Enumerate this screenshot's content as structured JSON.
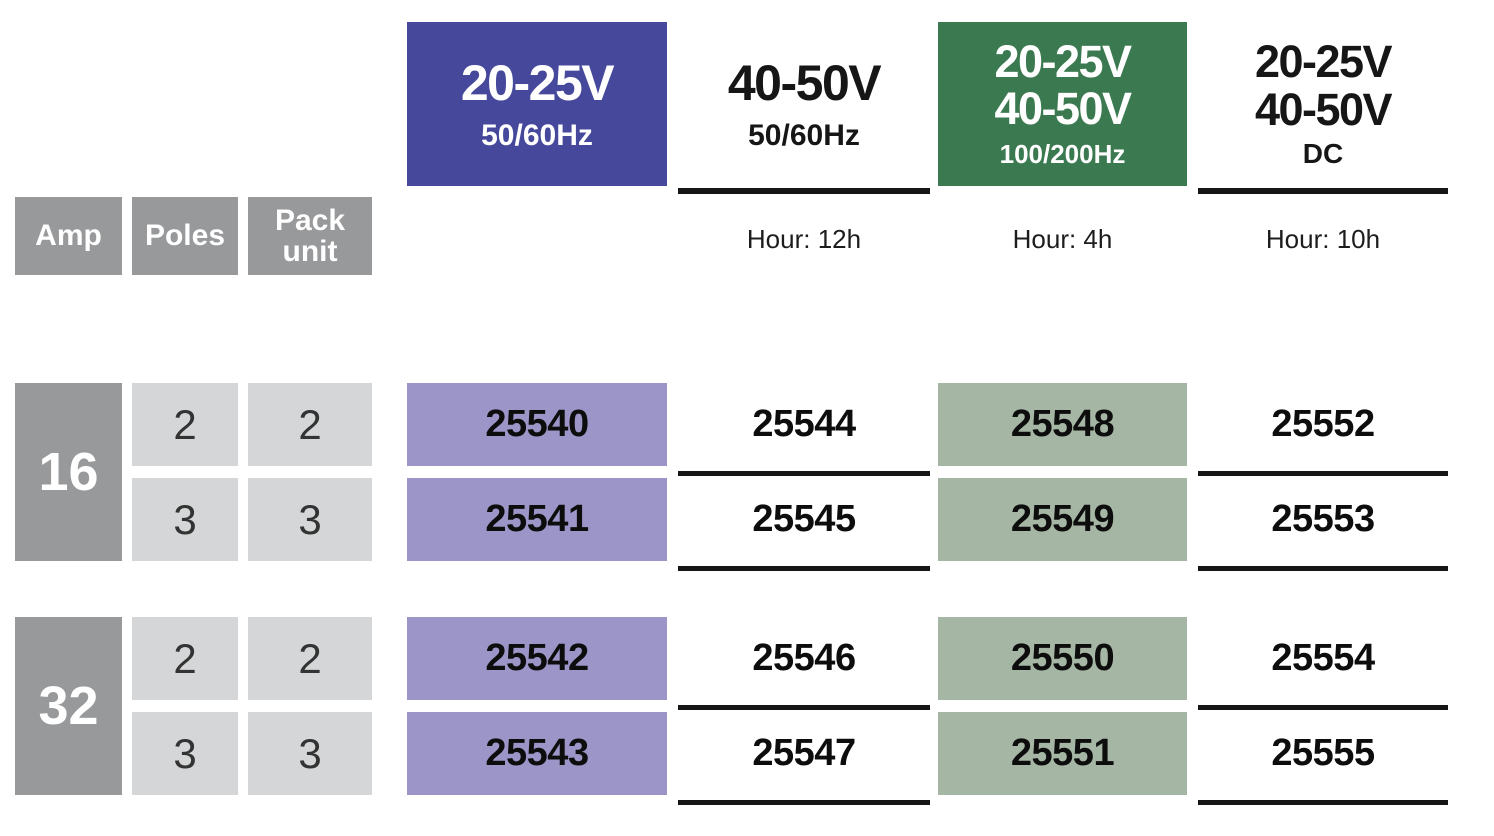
{
  "palette": {
    "indigo": "#46499b",
    "indigo-light": "#9c96c8",
    "green": "#3b7a50",
    "green-light": "#a6b6a4",
    "gray": "#98999b",
    "gray-light": "#d5d6d7",
    "ink": "#161616",
    "ink-soft": "#333333"
  },
  "header": {
    "columns": [
      {
        "line1": "20-25V",
        "line2": "",
        "sub": "50/60Hz",
        "hour": "",
        "style": "indigo-box"
      },
      {
        "line1": "40-50V",
        "line2": "",
        "sub": "50/60Hz",
        "hour": "Hour: 12h",
        "style": "plain-underlined"
      },
      {
        "line1": "20-25V",
        "line2": "40-50V",
        "sub": "100/200Hz",
        "hour": "Hour: 4h",
        "style": "green-box"
      },
      {
        "line1": "20-25V",
        "line2": "40-50V",
        "sub": "DC",
        "hour": "Hour: 10h",
        "style": "plain-underlined"
      }
    ]
  },
  "row_headers": {
    "amp": "Amp",
    "poles": "Poles",
    "pack_unit": "Pack unit"
  },
  "groups": [
    {
      "amp": "16",
      "rows": [
        {
          "poles": "2",
          "pack_unit": "2",
          "parts": [
            "25540",
            "25544",
            "25548",
            "25552"
          ]
        },
        {
          "poles": "3",
          "pack_unit": "3",
          "parts": [
            "25541",
            "25545",
            "25549",
            "25553"
          ]
        }
      ]
    },
    {
      "amp": "32",
      "rows": [
        {
          "poles": "2",
          "pack_unit": "2",
          "parts": [
            "25542",
            "25546",
            "25550",
            "25554"
          ]
        },
        {
          "poles": "3",
          "pack_unit": "3",
          "parts": [
            "25543",
            "25547",
            "25551",
            "25555"
          ]
        }
      ]
    }
  ]
}
